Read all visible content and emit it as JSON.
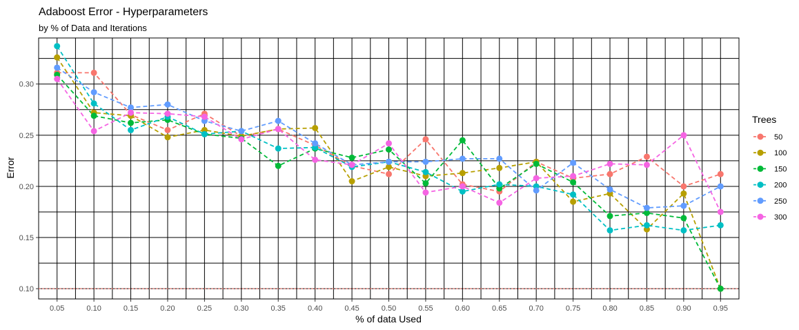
{
  "chart_data": {
    "type": "line",
    "title": "Adaboost Error - Hyperparameters",
    "subtitle": "by % of Data and Iterations",
    "xlabel": "% of data Used",
    "ylabel": "Error",
    "xlim": [
      0.025,
      0.975
    ],
    "ylim": [
      0.09,
      0.345
    ],
    "x": [
      "0.05",
      "0.10",
      "0.15",
      "0.20",
      "0.25",
      "0.30",
      "0.35",
      "0.40",
      "0.45",
      "0.50",
      "0.55",
      "0.60",
      "0.65",
      "0.70",
      "0.75",
      "0.80",
      "0.85",
      "0.90",
      "0.95"
    ],
    "y_ticks": [
      "0.10",
      "0.15",
      "0.20",
      "0.25",
      "0.30"
    ],
    "y_tick_values": [
      0.1,
      0.15,
      0.2,
      0.25,
      0.3
    ],
    "grid": true,
    "reference_line": {
      "y": 0.1,
      "color": "#F8766D"
    },
    "legend": {
      "title": "Trees",
      "position": "right"
    },
    "series": [
      {
        "name": "50",
        "color": "#F8766D",
        "values": [
          0.311,
          0.311,
          0.27,
          0.255,
          0.271,
          0.249,
          0.256,
          0.24,
          0.22,
          0.212,
          0.246,
          0.202,
          0.195,
          0.224,
          0.208,
          0.212,
          0.229,
          0.2,
          0.212
        ]
      },
      {
        "name": "100",
        "color": "#B79F00",
        "values": [
          0.326,
          0.272,
          0.269,
          0.248,
          0.255,
          0.249,
          0.256,
          0.257,
          0.205,
          0.219,
          0.21,
          0.213,
          0.218,
          0.224,
          0.185,
          0.193,
          0.158,
          0.193,
          0.1
        ]
      },
      {
        "name": "150",
        "color": "#00BA38",
        "values": [
          0.309,
          0.269,
          0.262,
          0.265,
          0.251,
          0.247,
          0.22,
          0.237,
          0.228,
          0.236,
          0.203,
          0.245,
          0.198,
          0.222,
          0.204,
          0.171,
          0.174,
          0.169,
          0.1
        ]
      },
      {
        "name": "200",
        "color": "#00BFC4",
        "values": [
          0.337,
          0.281,
          0.255,
          0.268,
          0.251,
          0.254,
          0.237,
          0.238,
          0.219,
          0.224,
          0.214,
          0.195,
          0.202,
          0.2,
          0.192,
          0.157,
          0.162,
          0.157,
          0.162
        ]
      },
      {
        "name": "250",
        "color": "#619CFF",
        "values": [
          0.316,
          0.292,
          0.277,
          0.28,
          0.264,
          0.254,
          0.264,
          0.242,
          0.221,
          0.224,
          0.224,
          0.227,
          0.227,
          0.196,
          0.223,
          0.197,
          0.179,
          0.181,
          0.2
        ]
      },
      {
        "name": "300",
        "color": "#F564E3",
        "values": [
          0.305,
          0.254,
          0.272,
          0.271,
          0.268,
          0.246,
          0.256,
          0.226,
          0.221,
          0.242,
          0.194,
          0.2,
          0.184,
          0.208,
          0.21,
          0.222,
          0.221,
          0.25,
          0.175
        ]
      }
    ]
  }
}
